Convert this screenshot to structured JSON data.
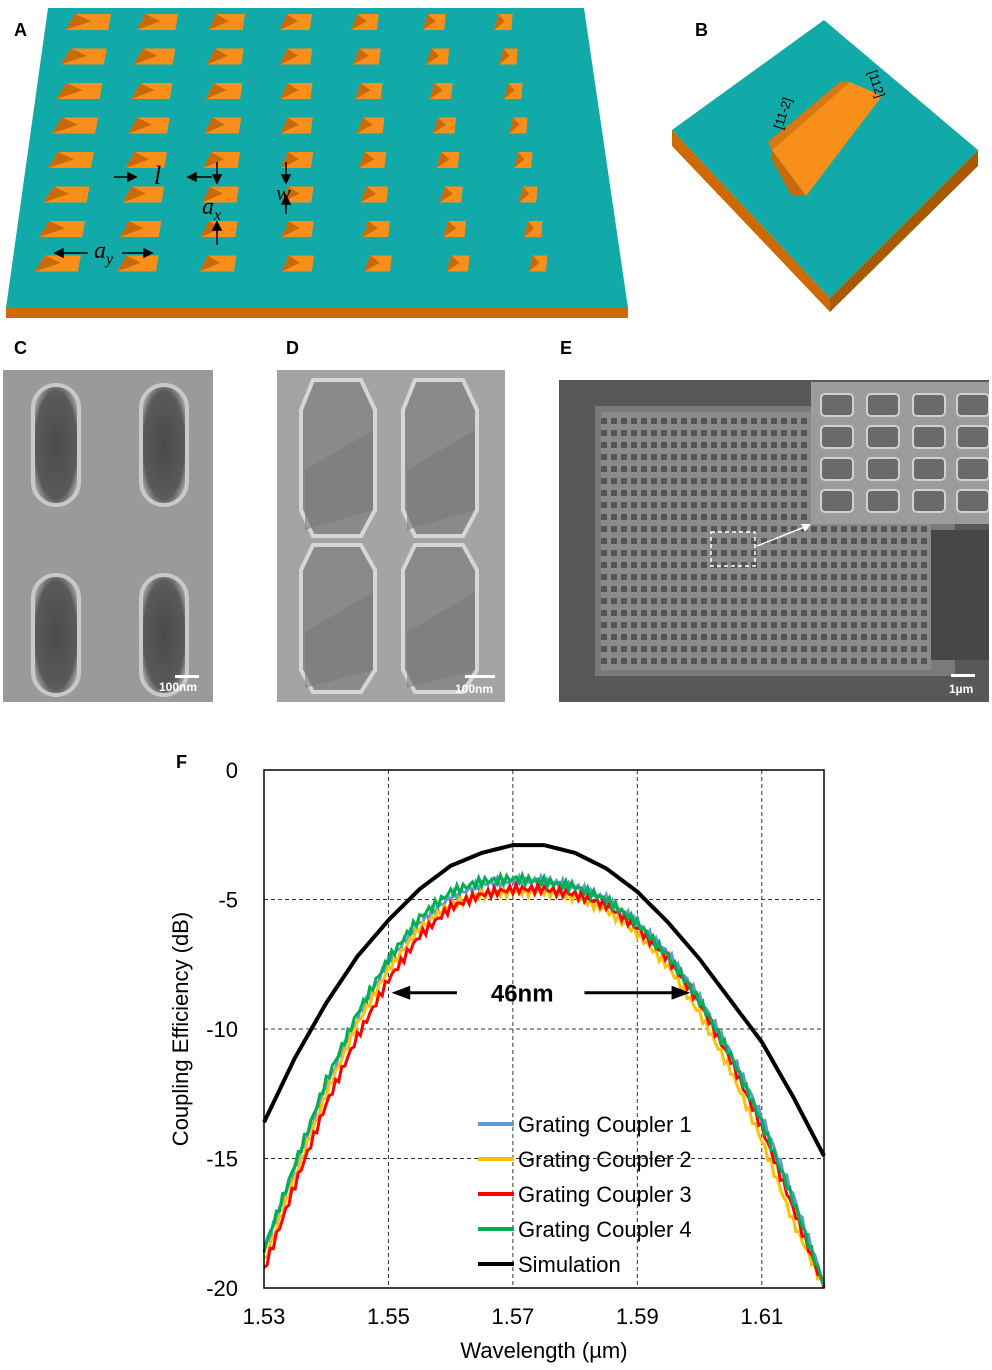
{
  "panels": {
    "a": "A",
    "b": "B",
    "c": "C",
    "d": "D",
    "e": "E",
    "f": "F"
  },
  "panel_a": {
    "labels": {
      "l": "l",
      "w": "w",
      "ax_main": "a",
      "ax_sub": "x",
      "ay_main": "a",
      "ay_sub": "y"
    },
    "colors": {
      "slab": "#12aaa8",
      "slab_edge": "#cc6a00",
      "hole": "#f78f1a",
      "hole_dark": "#c86a0a"
    },
    "grid": {
      "rows": 8,
      "cols": 7
    }
  },
  "panel_b": {
    "label_left": "[11-2]",
    "label_right": "[112]"
  },
  "panel_c": {
    "scale": "100nm"
  },
  "panel_d": {
    "scale": "100nm"
  },
  "panel_e": {
    "scale": "1µm"
  },
  "chart_data": {
    "type": "line",
    "xlabel": "Wavelength (µm)",
    "ylabel": "Coupling Efficiency (dB)",
    "xlim": [
      1.53,
      1.62
    ],
    "ylim": [
      -20,
      0
    ],
    "xticks": [
      "1.53",
      "1.55",
      "1.57",
      "1.59",
      "1.61"
    ],
    "xtick_values": [
      1.53,
      1.55,
      1.57,
      1.59,
      1.61
    ],
    "yticks": [
      "0",
      "-5",
      "-10",
      "-15",
      "-20"
    ],
    "ytick_values": [
      0,
      -5,
      -10,
      -15,
      -20
    ],
    "grid": "dashed",
    "legend_position": "bottom-right",
    "annotation": "46nm",
    "series": [
      {
        "name": "Grating Coupler 1",
        "color": "#5b9bd5",
        "x": [
          1.53,
          1.535,
          1.54,
          1.545,
          1.55,
          1.555,
          1.56,
          1.565,
          1.57,
          1.575,
          1.58,
          1.585,
          1.59,
          1.595,
          1.6,
          1.605,
          1.61,
          1.615,
          1.62
        ],
        "y": [
          -18.6,
          -15.4,
          -12.2,
          -9.6,
          -7.4,
          -5.9,
          -4.9,
          -4.4,
          -4.3,
          -4.3,
          -4.5,
          -5.0,
          -5.9,
          -7.1,
          -8.8,
          -10.9,
          -13.4,
          -16.4,
          -19.8
        ]
      },
      {
        "name": "Grating Coupler 2",
        "color": "#ffc000",
        "x": [
          1.53,
          1.535,
          1.54,
          1.545,
          1.55,
          1.555,
          1.56,
          1.565,
          1.57,
          1.575,
          1.58,
          1.585,
          1.59,
          1.595,
          1.6,
          1.605,
          1.61,
          1.615,
          1.62
        ],
        "y": [
          -19.0,
          -15.7,
          -12.5,
          -9.8,
          -7.7,
          -6.1,
          -5.2,
          -4.8,
          -4.7,
          -4.7,
          -4.9,
          -5.4,
          -6.3,
          -7.6,
          -9.4,
          -11.6,
          -14.3,
          -17.4,
          -20.0
        ]
      },
      {
        "name": "Grating Coupler 3",
        "color": "#ff0000",
        "x": [
          1.53,
          1.535,
          1.54,
          1.545,
          1.55,
          1.555,
          1.56,
          1.565,
          1.57,
          1.575,
          1.58,
          1.585,
          1.59,
          1.595,
          1.6,
          1.605,
          1.61,
          1.615,
          1.62
        ],
        "y": [
          -19.3,
          -16.0,
          -12.9,
          -10.3,
          -8.1,
          -6.4,
          -5.3,
          -4.8,
          -4.6,
          -4.6,
          -4.8,
          -5.2,
          -6.1,
          -7.3,
          -9.0,
          -11.2,
          -13.8,
          -16.9,
          -20.0
        ]
      },
      {
        "name": "Grating Coupler 4",
        "color": "#00b050",
        "x": [
          1.53,
          1.535,
          1.54,
          1.545,
          1.55,
          1.555,
          1.56,
          1.565,
          1.57,
          1.575,
          1.58,
          1.585,
          1.59,
          1.595,
          1.6,
          1.605,
          1.61,
          1.615,
          1.62
        ],
        "y": [
          -18.5,
          -15.2,
          -12.0,
          -9.4,
          -7.3,
          -5.7,
          -4.7,
          -4.3,
          -4.2,
          -4.3,
          -4.5,
          -5.0,
          -5.9,
          -7.2,
          -8.9,
          -11.0,
          -13.6,
          -16.6,
          -19.9
        ]
      },
      {
        "name": "Simulation",
        "color": "#000000",
        "x": [
          1.53,
          1.535,
          1.54,
          1.545,
          1.55,
          1.555,
          1.56,
          1.565,
          1.57,
          1.575,
          1.58,
          1.585,
          1.59,
          1.595,
          1.6,
          1.605,
          1.61,
          1.615,
          1.62
        ],
        "y": [
          -13.6,
          -11.1,
          -9.0,
          -7.2,
          -5.8,
          -4.6,
          -3.7,
          -3.2,
          -2.9,
          -2.9,
          -3.2,
          -3.8,
          -4.7,
          -5.9,
          -7.3,
          -8.9,
          -10.5,
          -12.6,
          -14.9
        ]
      }
    ]
  }
}
